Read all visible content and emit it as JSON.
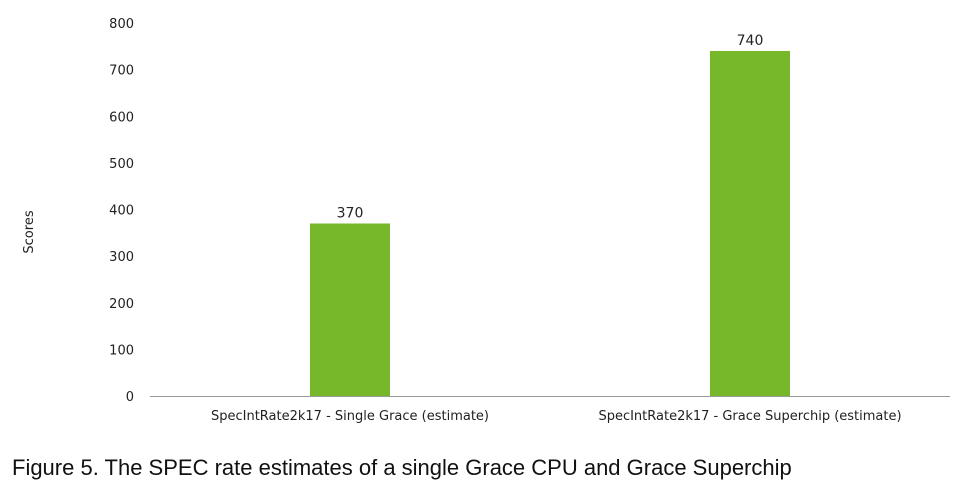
{
  "chart_data": {
    "type": "bar",
    "categories": [
      "SpecIntRate2k17 - Single Grace (estimate)",
      "SpecIntRate2k17 - Grace Superchip (estimate)"
    ],
    "values": [
      370,
      740
    ],
    "data_labels": [
      "370",
      "740"
    ],
    "ylabel": "Scores",
    "xlabel": "",
    "ylim": [
      0,
      800
    ],
    "yticks": [
      0,
      100,
      200,
      300,
      400,
      500,
      600,
      700,
      800
    ],
    "grid": false,
    "legend": "none",
    "bar_color": "#76b82a",
    "axis_color": "#999999"
  },
  "caption": "Figure 5. The SPEC rate estimates of a single Grace CPU and Grace Superchip"
}
